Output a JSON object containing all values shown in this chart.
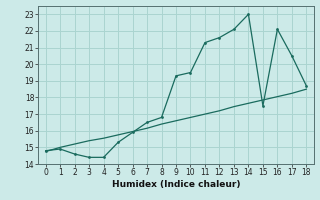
{
  "title": "",
  "xlabel": "Humidex (Indice chaleur)",
  "bg_color": "#cceae8",
  "line_color": "#1a6b5e",
  "grid_color": "#aad4d0",
  "x_data": [
    0,
    1,
    2,
    3,
    4,
    5,
    6,
    7,
    8,
    9,
    10,
    11,
    12,
    13,
    14,
    15,
    16,
    17,
    18
  ],
  "y_curve": [
    14.8,
    14.9,
    14.6,
    14.4,
    14.4,
    15.3,
    15.9,
    16.5,
    16.8,
    19.3,
    19.5,
    21.3,
    21.6,
    22.1,
    23.0,
    17.5,
    22.1,
    20.5,
    18.7
  ],
  "y_line": [
    14.75,
    15.0,
    15.2,
    15.4,
    15.55,
    15.75,
    15.95,
    16.15,
    16.4,
    16.6,
    16.8,
    17.0,
    17.2,
    17.45,
    17.65,
    17.85,
    18.05,
    18.25,
    18.5
  ],
  "ylim": [
    14,
    23.5
  ],
  "xlim": [
    -0.5,
    18.5
  ],
  "yticks": [
    14,
    15,
    16,
    17,
    18,
    19,
    20,
    21,
    22,
    23
  ],
  "xticks": [
    0,
    1,
    2,
    3,
    4,
    5,
    6,
    7,
    8,
    9,
    10,
    11,
    12,
    13,
    14,
    15,
    16,
    17,
    18
  ]
}
